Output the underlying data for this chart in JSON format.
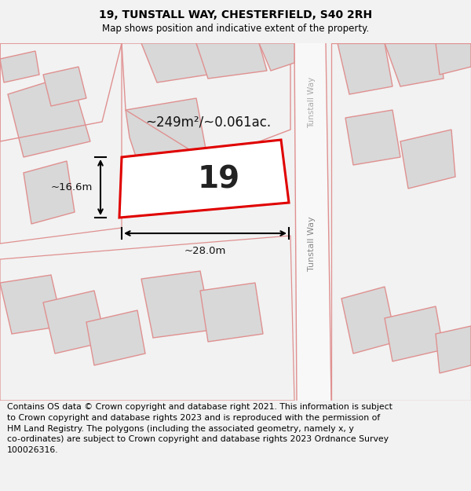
{
  "title": "19, TUNSTALL WAY, CHESTERFIELD, S40 2RH",
  "subtitle": "Map shows position and indicative extent of the property.",
  "area_text": "~249m²/~0.061ac.",
  "number_label": "19",
  "dim_width": "~28.0m",
  "dim_height": "~16.6m",
  "road_label_top": "Tunstall Way",
  "road_label_bottom": "Tunstall Way",
  "footer": "Contains OS data © Crown copyright and database right 2021. This information is subject\nto Crown copyright and database rights 2023 and is reproduced with the permission of\nHM Land Registry. The polygons (including the associated geometry, namely x, y\nco-ordinates) are subject to Crown copyright and database rights 2023 Ordnance Survey\n100026316.",
  "bg_color": "#f2f2f2",
  "map_bg": "#ffffff",
  "plot_color": "#e00000",
  "plot_fill": "#ffffff",
  "neighbor_ec": "#e09090",
  "neighbor_fc": "#d8d8d8",
  "title_fontsize": 10,
  "subtitle_fontsize": 8.5,
  "footer_fontsize": 7.8,
  "area_fontsize": 12,
  "number_fontsize": 28
}
